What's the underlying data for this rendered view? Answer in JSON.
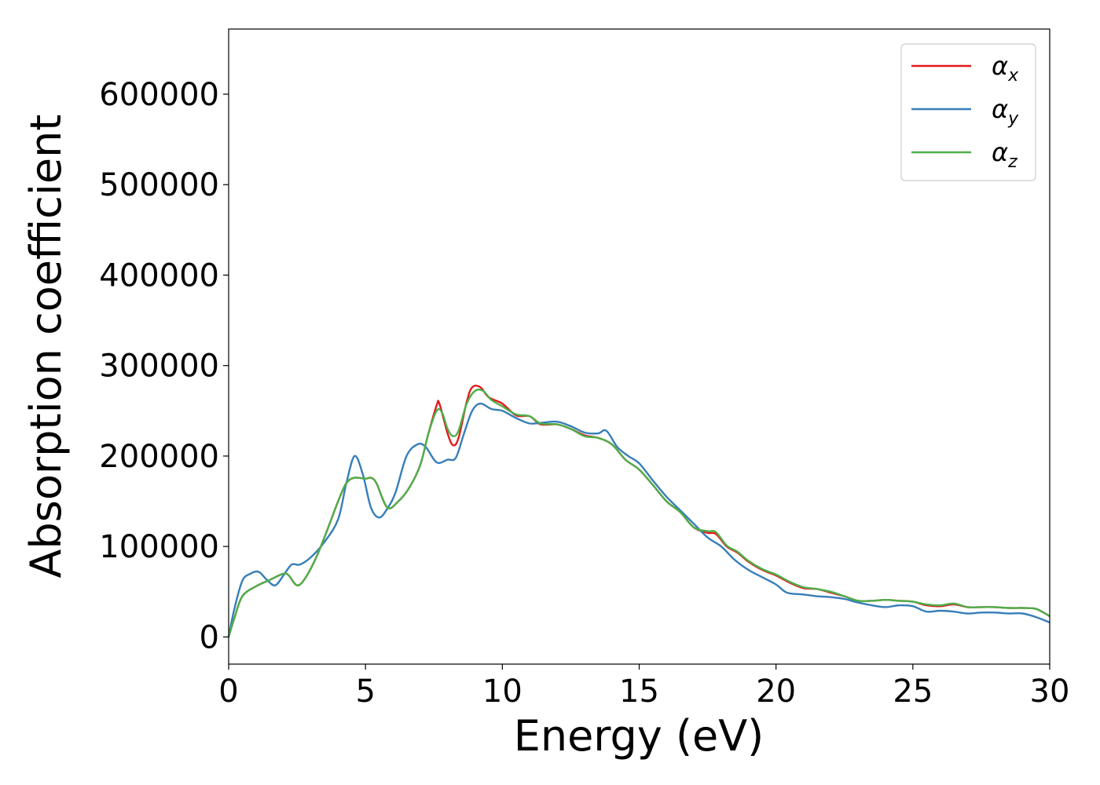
{
  "chart_data": {
    "type": "line",
    "title": "",
    "xlabel": "Energy (eV)",
    "ylabel": "Absorption coefficient",
    "xlim": [
      0,
      30
    ],
    "ylim": [
      -30000,
      672000
    ],
    "xticks": [
      0,
      5,
      10,
      15,
      20,
      25,
      30
    ],
    "yticks": [
      0,
      100000,
      200000,
      300000,
      400000,
      500000,
      600000
    ],
    "grid": false,
    "legend_position": "top-right",
    "series": [
      {
        "name": "αx",
        "name_base": "α",
        "name_sub": "x",
        "color": "#e41a1c",
        "points": [
          [
            0,
            0
          ],
          [
            0.2,
            20000
          ],
          [
            0.5,
            45000
          ],
          [
            1,
            56000
          ],
          [
            1.5,
            63000
          ],
          [
            2,
            70000
          ],
          [
            2.2,
            68000
          ],
          [
            2.5,
            57000
          ],
          [
            2.8,
            65000
          ],
          [
            3.2,
            88000
          ],
          [
            3.6,
            118000
          ],
          [
            4,
            150000
          ],
          [
            4.3,
            170000
          ],
          [
            4.6,
            176000
          ],
          [
            5,
            175000
          ],
          [
            5.2,
            176000
          ],
          [
            5.4,
            170000
          ],
          [
            5.8,
            143000
          ],
          [
            6.2,
            150000
          ],
          [
            6.6,
            165000
          ],
          [
            7,
            190000
          ],
          [
            7.3,
            225000
          ],
          [
            7.6,
            256000
          ],
          [
            7.7,
            258000
          ],
          [
            8,
            225000
          ],
          [
            8.2,
            212000
          ],
          [
            8.4,
            220000
          ],
          [
            8.7,
            260000
          ],
          [
            8.9,
            276000
          ],
          [
            9.2,
            276000
          ],
          [
            9.5,
            265000
          ],
          [
            10,
            258000
          ],
          [
            10.5,
            245000
          ],
          [
            11,
            244000
          ],
          [
            11.4,
            235000
          ],
          [
            12,
            235000
          ],
          [
            12.5,
            230000
          ],
          [
            13,
            223000
          ],
          [
            13.5,
            220000
          ],
          [
            14,
            213000
          ],
          [
            14.5,
            196000
          ],
          [
            15,
            185000
          ],
          [
            15.5,
            168000
          ],
          [
            16,
            150000
          ],
          [
            16.5,
            138000
          ],
          [
            17,
            121000
          ],
          [
            17.5,
            115000
          ],
          [
            17.8,
            114000
          ],
          [
            18.2,
            100000
          ],
          [
            18.6,
            93000
          ],
          [
            19,
            83000
          ],
          [
            19.5,
            74000
          ],
          [
            20,
            68000
          ],
          [
            20.5,
            60000
          ],
          [
            21,
            54000
          ],
          [
            21.5,
            53000
          ],
          [
            22,
            49000
          ],
          [
            22.5,
            45000
          ],
          [
            23,
            40000
          ],
          [
            23.5,
            40000
          ],
          [
            24,
            41000
          ],
          [
            24.5,
            40000
          ],
          [
            25,
            39000
          ],
          [
            25.5,
            35000
          ],
          [
            26,
            34000
          ],
          [
            26.5,
            36000
          ],
          [
            27,
            33000
          ],
          [
            27.5,
            33000
          ],
          [
            28,
            33000
          ],
          [
            28.5,
            32000
          ],
          [
            29,
            32000
          ],
          [
            29.5,
            31000
          ],
          [
            30,
            23000
          ]
        ]
      },
      {
        "name": "αy",
        "name_base": "α",
        "name_sub": "y",
        "color": "#377eb8",
        "points": [
          [
            0,
            0
          ],
          [
            0.2,
            30000
          ],
          [
            0.5,
            62000
          ],
          [
            0.8,
            70000
          ],
          [
            1.1,
            72000
          ],
          [
            1.4,
            63000
          ],
          [
            1.7,
            57000
          ],
          [
            2,
            68000
          ],
          [
            2.3,
            80000
          ],
          [
            2.6,
            80000
          ],
          [
            3,
            88000
          ],
          [
            3.5,
            105000
          ],
          [
            4,
            130000
          ],
          [
            4.3,
            170000
          ],
          [
            4.6,
            200000
          ],
          [
            4.9,
            180000
          ],
          [
            5.2,
            143000
          ],
          [
            5.5,
            132000
          ],
          [
            5.8,
            142000
          ],
          [
            6.1,
            160000
          ],
          [
            6.5,
            200000
          ],
          [
            6.9,
            213000
          ],
          [
            7.2,
            210000
          ],
          [
            7.6,
            193000
          ],
          [
            8,
            196000
          ],
          [
            8.3,
            198000
          ],
          [
            8.6,
            225000
          ],
          [
            8.9,
            250000
          ],
          [
            9.2,
            258000
          ],
          [
            9.6,
            252000
          ],
          [
            10,
            250000
          ],
          [
            10.5,
            242000
          ],
          [
            11,
            236000
          ],
          [
            11.5,
            237000
          ],
          [
            12,
            238000
          ],
          [
            12.5,
            233000
          ],
          [
            13,
            226000
          ],
          [
            13.5,
            225000
          ],
          [
            13.8,
            228000
          ],
          [
            14.2,
            210000
          ],
          [
            14.6,
            200000
          ],
          [
            15,
            192000
          ],
          [
            15.5,
            173000
          ],
          [
            16,
            155000
          ],
          [
            16.5,
            140000
          ],
          [
            17,
            125000
          ],
          [
            17.5,
            110000
          ],
          [
            18,
            100000
          ],
          [
            18.5,
            85000
          ],
          [
            19,
            74000
          ],
          [
            19.5,
            66000
          ],
          [
            20,
            58000
          ],
          [
            20.4,
            49000
          ],
          [
            21,
            47000
          ],
          [
            21.5,
            45000
          ],
          [
            22,
            44000
          ],
          [
            22.5,
            42000
          ],
          [
            23,
            38000
          ],
          [
            23.5,
            35000
          ],
          [
            24,
            33000
          ],
          [
            24.5,
            35000
          ],
          [
            25,
            34000
          ],
          [
            25.5,
            28000
          ],
          [
            26,
            29000
          ],
          [
            26.5,
            28000
          ],
          [
            27,
            26000
          ],
          [
            27.5,
            27000
          ],
          [
            28,
            27000
          ],
          [
            28.5,
            26000
          ],
          [
            29,
            26000
          ],
          [
            29.5,
            22000
          ],
          [
            30,
            16000
          ]
        ]
      },
      {
        "name": "αz",
        "name_base": "α",
        "name_sub": "z",
        "color": "#4daf4a",
        "points": [
          [
            0,
            0
          ],
          [
            0.2,
            20000
          ],
          [
            0.5,
            45000
          ],
          [
            1,
            56000
          ],
          [
            1.5,
            63000
          ],
          [
            2,
            70000
          ],
          [
            2.2,
            68000
          ],
          [
            2.5,
            57000
          ],
          [
            2.8,
            65000
          ],
          [
            3.2,
            88000
          ],
          [
            3.6,
            118000
          ],
          [
            4,
            150000
          ],
          [
            4.3,
            170000
          ],
          [
            4.6,
            176000
          ],
          [
            5,
            175000
          ],
          [
            5.2,
            176000
          ],
          [
            5.4,
            170000
          ],
          [
            5.8,
            143000
          ],
          [
            6.2,
            150000
          ],
          [
            6.6,
            165000
          ],
          [
            7,
            190000
          ],
          [
            7.3,
            225000
          ],
          [
            7.6,
            250000
          ],
          [
            7.8,
            248000
          ],
          [
            8,
            230000
          ],
          [
            8.2,
            222000
          ],
          [
            8.4,
            228000
          ],
          [
            8.7,
            258000
          ],
          [
            9,
            272000
          ],
          [
            9.3,
            272000
          ],
          [
            9.6,
            262000
          ],
          [
            10,
            255000
          ],
          [
            10.5,
            246000
          ],
          [
            11,
            244000
          ],
          [
            11.4,
            236000
          ],
          [
            12,
            235000
          ],
          [
            12.5,
            230000
          ],
          [
            13,
            222000
          ],
          [
            13.5,
            220000
          ],
          [
            14,
            213000
          ],
          [
            14.5,
            196000
          ],
          [
            15,
            185000
          ],
          [
            15.5,
            168000
          ],
          [
            16,
            150000
          ],
          [
            16.5,
            138000
          ],
          [
            17,
            121000
          ],
          [
            17.5,
            117000
          ],
          [
            17.8,
            116000
          ],
          [
            18.2,
            101000
          ],
          [
            18.6,
            94000
          ],
          [
            19,
            84000
          ],
          [
            19.5,
            75000
          ],
          [
            20,
            69000
          ],
          [
            20.5,
            61000
          ],
          [
            21,
            55000
          ],
          [
            21.5,
            53000
          ],
          [
            22,
            50000
          ],
          [
            22.5,
            45000
          ],
          [
            23,
            40000
          ],
          [
            23.5,
            40000
          ],
          [
            24,
            41000
          ],
          [
            24.5,
            40000
          ],
          [
            25,
            39000
          ],
          [
            25.5,
            36000
          ],
          [
            26,
            35000
          ],
          [
            26.5,
            37000
          ],
          [
            27,
            33000
          ],
          [
            27.5,
            33000
          ],
          [
            28,
            33000
          ],
          [
            28.5,
            32000
          ],
          [
            29,
            32000
          ],
          [
            29.5,
            31000
          ],
          [
            30,
            23000
          ]
        ]
      }
    ]
  }
}
